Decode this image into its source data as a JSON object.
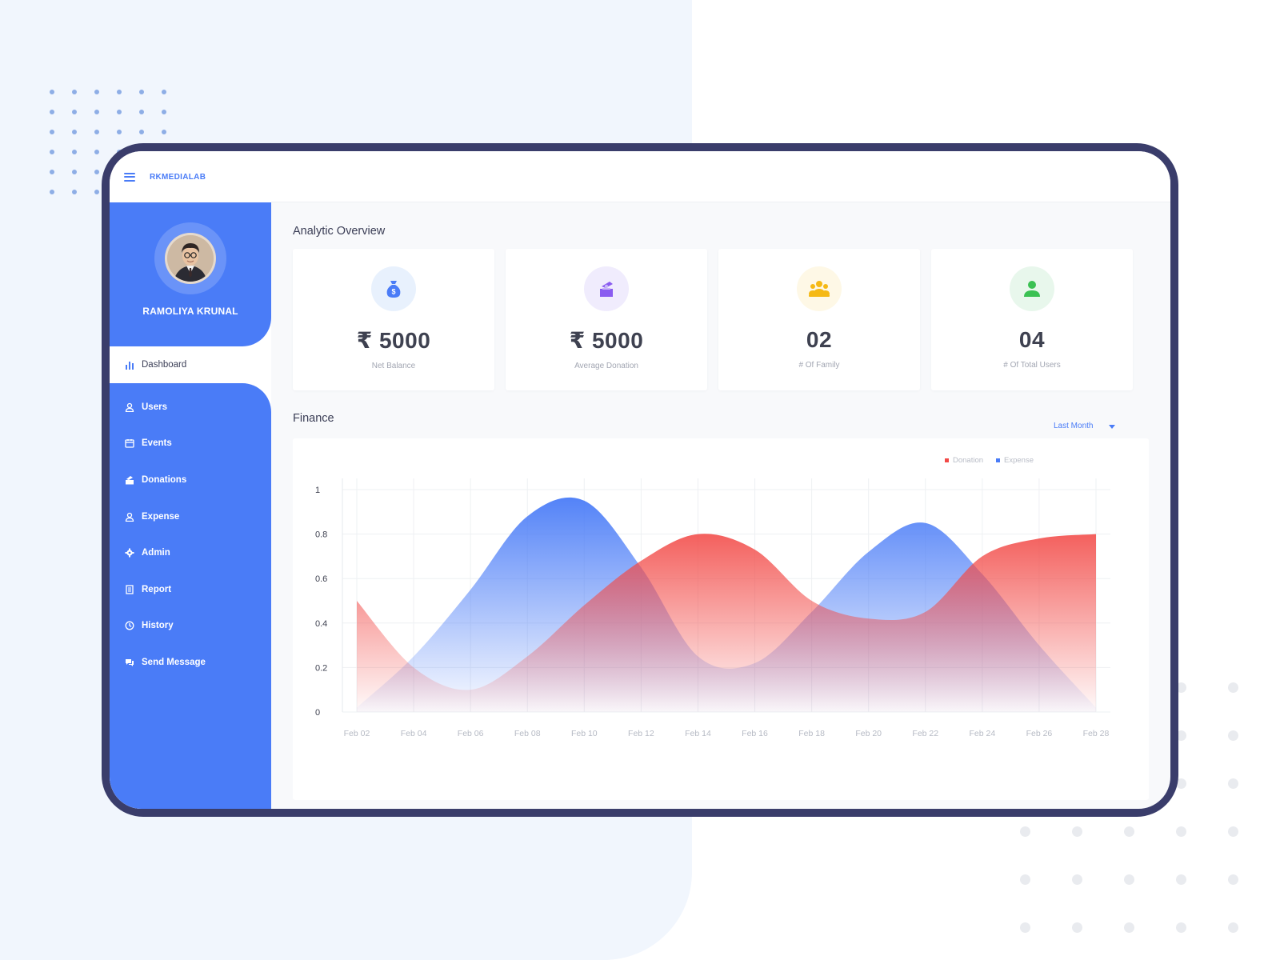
{
  "app": {
    "brand": "RKMEDIALAB",
    "user_name": "RAMOLIYA KRUNAL"
  },
  "sidebar": {
    "active_item": {
      "label": "Dashboard",
      "icon": "bar-chart-icon"
    },
    "items": [
      {
        "label": "Users",
        "icon": "user-icon"
      },
      {
        "label": "Events",
        "icon": "calendar-icon"
      },
      {
        "label": "Donations",
        "icon": "donation-box-icon"
      },
      {
        "label": "Expense",
        "icon": "user-icon"
      },
      {
        "label": "Admin",
        "icon": "gear-icon"
      },
      {
        "label": "Report",
        "icon": "document-icon"
      },
      {
        "label": "History",
        "icon": "clock-icon"
      },
      {
        "label": "Send Message",
        "icon": "chat-icon"
      }
    ]
  },
  "topbar": {
    "notification_icon": "bell-icon",
    "search_icon": "search-icon",
    "notification_color": "#f7a93b"
  },
  "overview": {
    "title": "Analytic Overview",
    "cards": [
      {
        "value": "₹ 5000",
        "caption": "Net Balance",
        "icon": "money-bag-icon",
        "color": "#4a7cf7",
        "bg": "#e8f1fd"
      },
      {
        "value": "₹ 5000",
        "caption": "Average Donation",
        "icon": "donation-box-icon",
        "color": "#8a5cf0",
        "bg": "#f0ecfd"
      },
      {
        "value": "02",
        "caption": "# Of Family",
        "icon": "family-icon",
        "color": "#f5b915",
        "bg": "#fef8e6"
      },
      {
        "value": "04",
        "caption": "# Of Total Users",
        "icon": "user-icon",
        "color": "#3bc153",
        "bg": "#e8f7ec"
      }
    ]
  },
  "finance": {
    "title": "Finance",
    "period": "Last Month",
    "chart_data": {
      "type": "area",
      "x": [
        "Feb 02",
        "Feb 04",
        "Feb 06",
        "Feb 08",
        "Feb 10",
        "Feb 12",
        "Feb 14",
        "Feb 16",
        "Feb 18",
        "Feb 20",
        "Feb 22",
        "Feb 24",
        "Feb 26",
        "Feb 28"
      ],
      "ylim": [
        0,
        1
      ],
      "yticks": [
        "0",
        "0.2",
        "0.4",
        "0.6",
        "0.8",
        "1"
      ],
      "legend_position": "top-right",
      "series": [
        {
          "name": "Donation",
          "color": "#f24a47",
          "values": [
            0.5,
            0.2,
            0.1,
            0.25,
            0.48,
            0.68,
            0.8,
            0.73,
            0.5,
            0.42,
            0.45,
            0.7,
            0.78,
            0.8
          ]
        },
        {
          "name": "Expense",
          "color": "#4a7cf7",
          "values": [
            0.02,
            0.25,
            0.55,
            0.88,
            0.95,
            0.65,
            0.25,
            0.22,
            0.45,
            0.72,
            0.85,
            0.62,
            0.3,
            0.02
          ]
        }
      ]
    }
  }
}
